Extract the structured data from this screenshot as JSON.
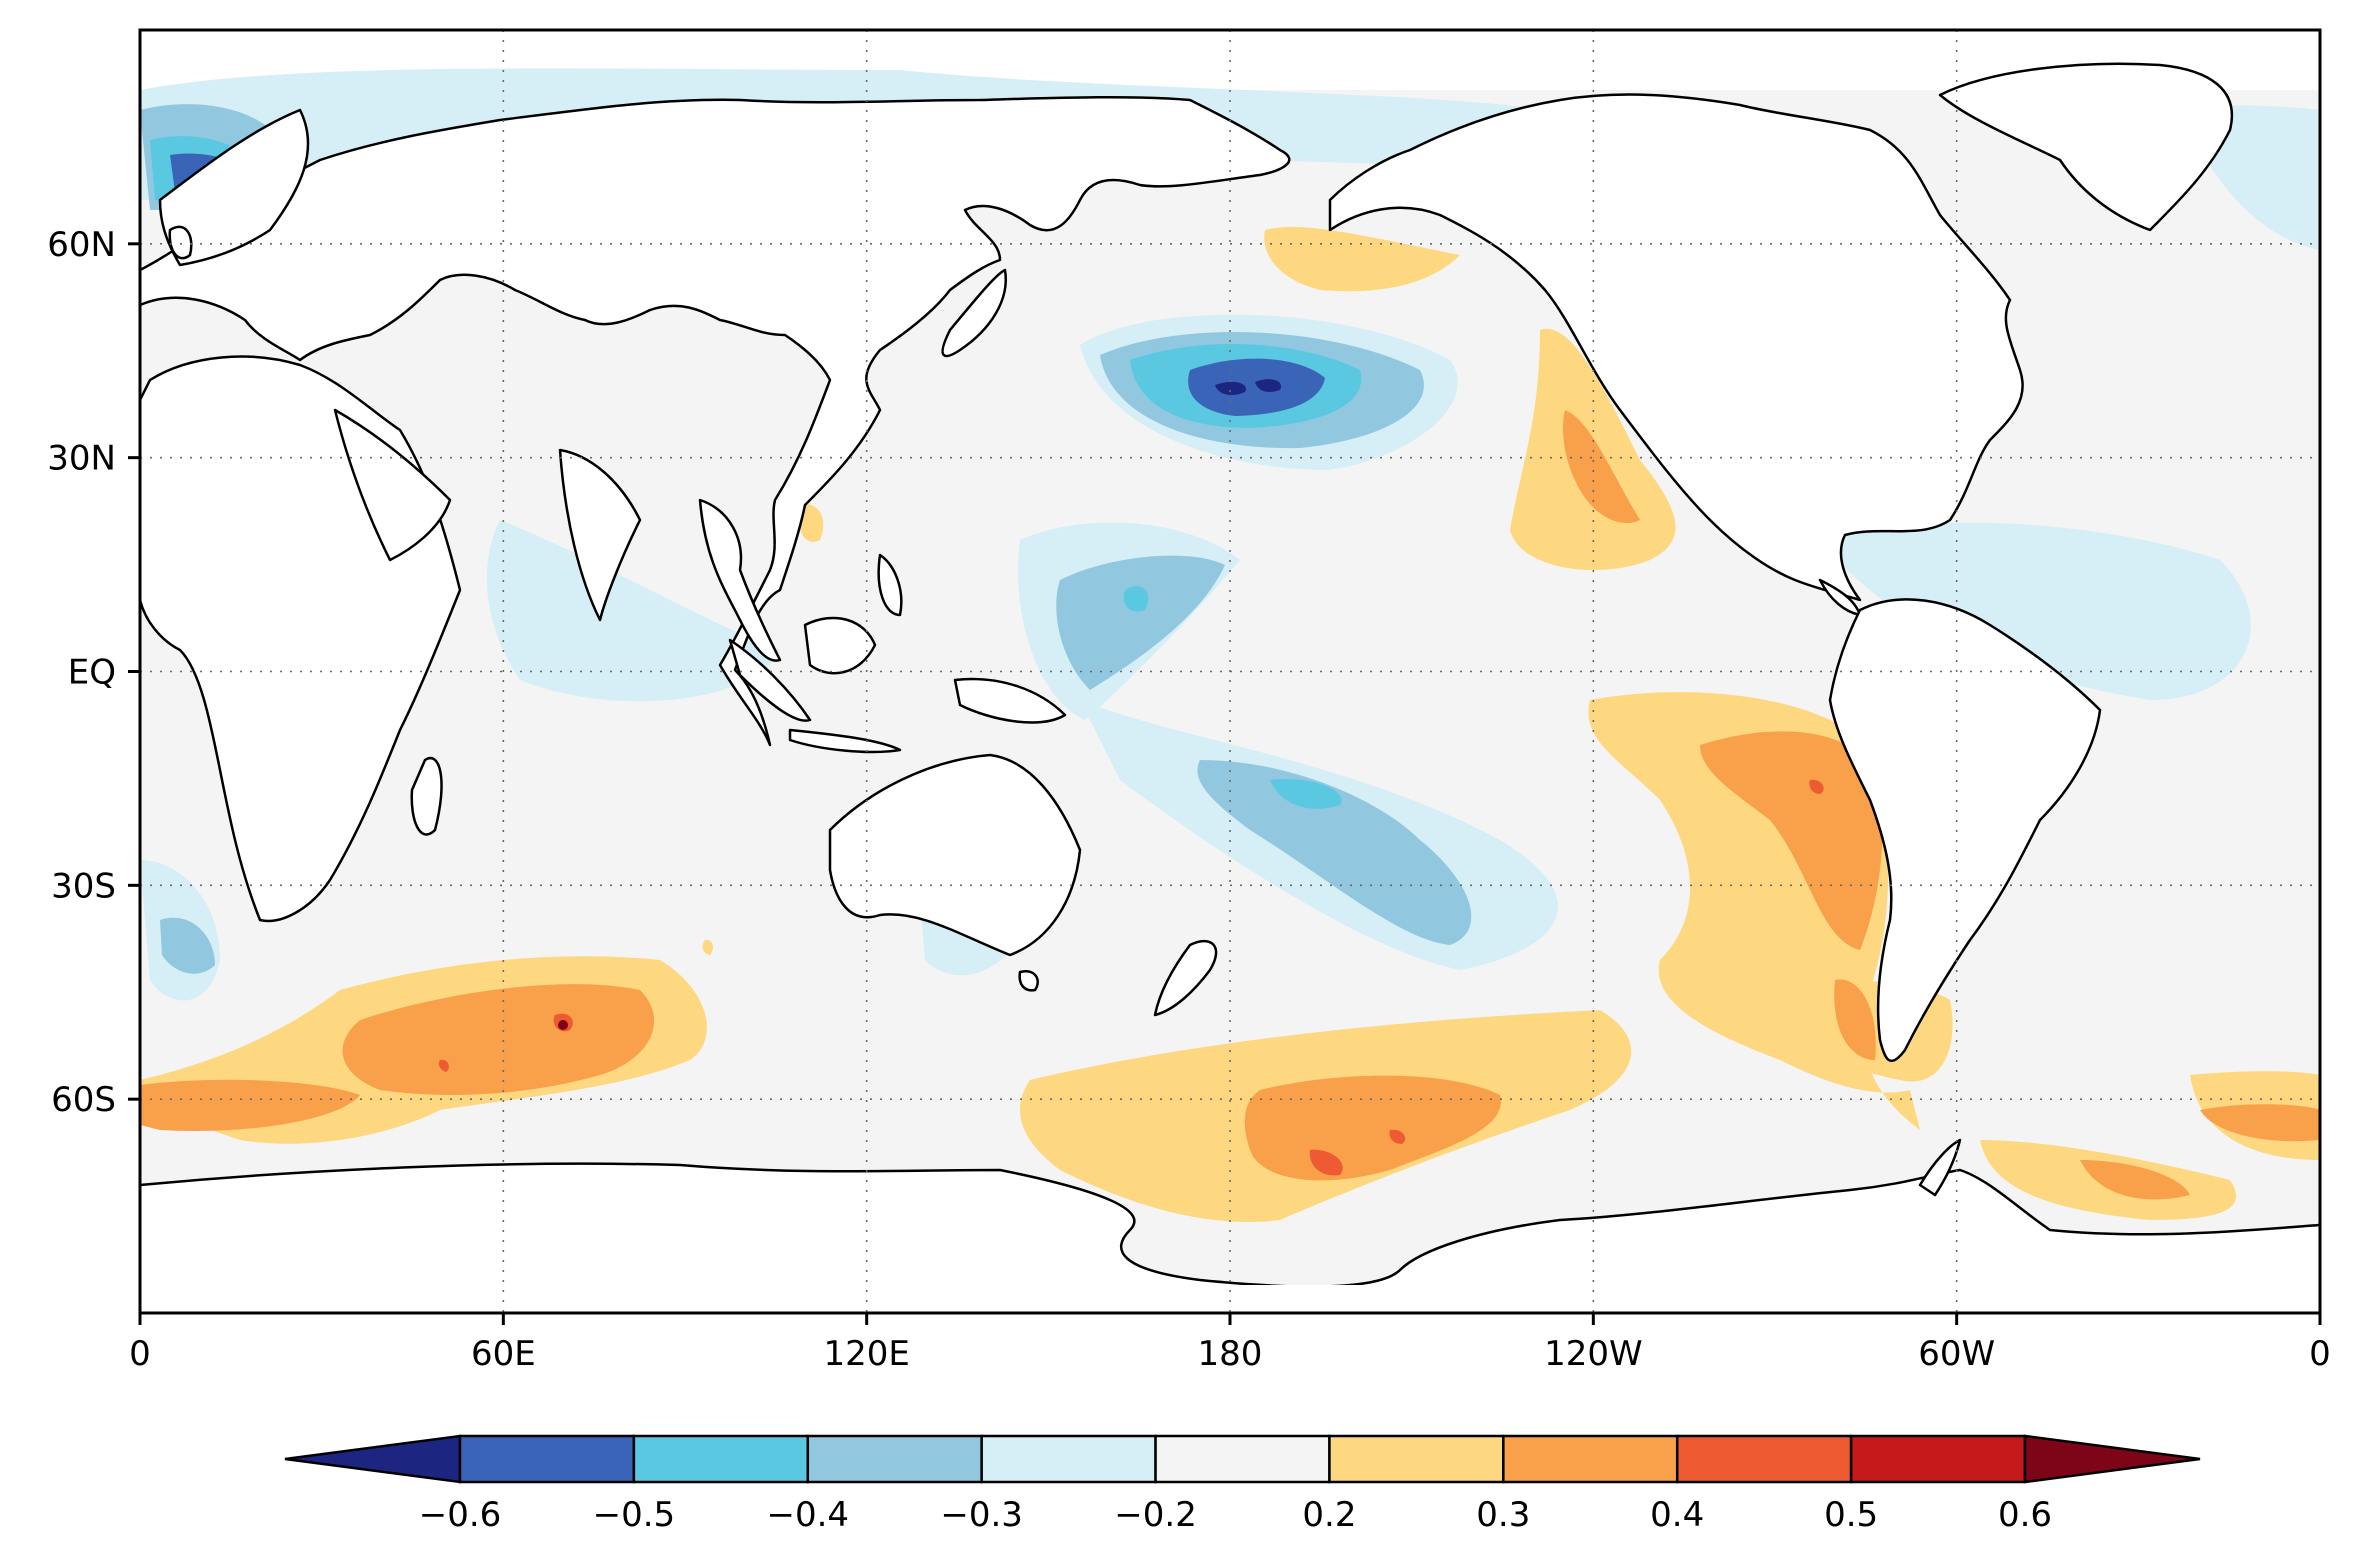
{
  "map": {
    "type": "filled-contour-map",
    "projection": "cylindrical-equidistant",
    "lon_range": [
      0,
      360
    ],
    "lat_range": [
      -90,
      90
    ],
    "x_ticks": [
      {
        "lon": 0,
        "label": "0"
      },
      {
        "lon": 60,
        "label": "60E"
      },
      {
        "lon": 120,
        "label": "120E"
      },
      {
        "lon": 180,
        "label": "180"
      },
      {
        "lon": 240,
        "label": "120W"
      },
      {
        "lon": 300,
        "label": "60W"
      },
      {
        "lon": 360,
        "label": "0"
      }
    ],
    "y_ticks": [
      {
        "lat": 60,
        "label": "60N"
      },
      {
        "lat": 30,
        "label": "30N"
      },
      {
        "lat": 0,
        "label": "EQ"
      },
      {
        "lat": -30,
        "label": "30S"
      },
      {
        "lat": -60,
        "label": "60S"
      }
    ],
    "grid": "dotted"
  },
  "colorbar": {
    "levels": [
      "−0.6",
      "−0.5",
      "−0.4",
      "−0.3",
      "−0.2",
      "0.2",
      "0.3",
      "0.4",
      "0.5",
      "0.6"
    ],
    "colors": [
      "#1c2680",
      "#3a64b8",
      "#5ac8e0",
      "#92c8df",
      "#d6eef5",
      "#f4f4f4",
      "#fdd880",
      "#f8a04a",
      "#ee5a32",
      "#c41a1c",
      "#7e0418"
    ],
    "extend": "both"
  },
  "anomaly_regions": [
    {
      "name": "north-pacific-negative-core",
      "lon": 184,
      "lat": 38,
      "value": -0.6
    },
    {
      "name": "north-pacific-negative-ring",
      "lon": 182,
      "lat": 38,
      "value": -0.4
    },
    {
      "name": "west-pacific-negative",
      "lon": 160,
      "lat": 12,
      "value": -0.4
    },
    {
      "name": "south-pacific-negative",
      "lon": 200,
      "lat": -25,
      "value": -0.4
    },
    {
      "name": "california-coast-positive",
      "lon": 242,
      "lat": 30,
      "value": 0.3
    },
    {
      "name": "alaska-gulf-positive",
      "lon": 196,
      "lat": 56,
      "value": 0.2
    },
    {
      "name": "peru-chile-coast-positive",
      "lon": 280,
      "lat": -20,
      "value": 0.3
    },
    {
      "name": "southern-indian-ocean-positive",
      "lon": 68,
      "lat": -48,
      "value": 0.4
    },
    {
      "name": "south-pacific-60s-positive",
      "lon": 196,
      "lat": -65,
      "value": 0.4
    },
    {
      "name": "south-atlantic-60s-positive",
      "lon": 350,
      "lat": -62,
      "value": 0.3
    },
    {
      "name": "north-atlantic-negative",
      "lon": 10,
      "lat": 70,
      "value": -0.5
    }
  ]
}
